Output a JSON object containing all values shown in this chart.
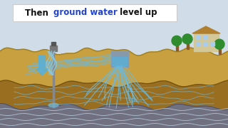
{
  "bg_sky_color": "#d0dde8",
  "sky_hatch_color": "#b8cad8",
  "ground_top_color": "#c8a040",
  "ground_mid_color": "#9a6e20",
  "ground_deep_color": "#707080",
  "water_color": "#70b8d8",
  "water_light": "#a8cce0",
  "title_box_bg": "#ffffff",
  "title_box_edge": "#cccccc",
  "title_black": "Then ",
  "title_blue": "ground water",
  "title_black2": " level up",
  "title_fontsize": 8.5,
  "arrow_color": "#5ab0d8",
  "waterfall_color": "#88c8e8",
  "well_pipe_color": "#888888",
  "building_wall": "#d4c898",
  "building_roof": "#b08030",
  "building_window": "#aaccee",
  "tree_green": "#2e8c2e",
  "trunk_color": "#8B5A2B",
  "pit_wall_color": "#8899aa",
  "pit_water_color": "#5ab0d8",
  "deep_wave_color": "#c0d8e8",
  "ground_wave_color": "#88a0b0"
}
